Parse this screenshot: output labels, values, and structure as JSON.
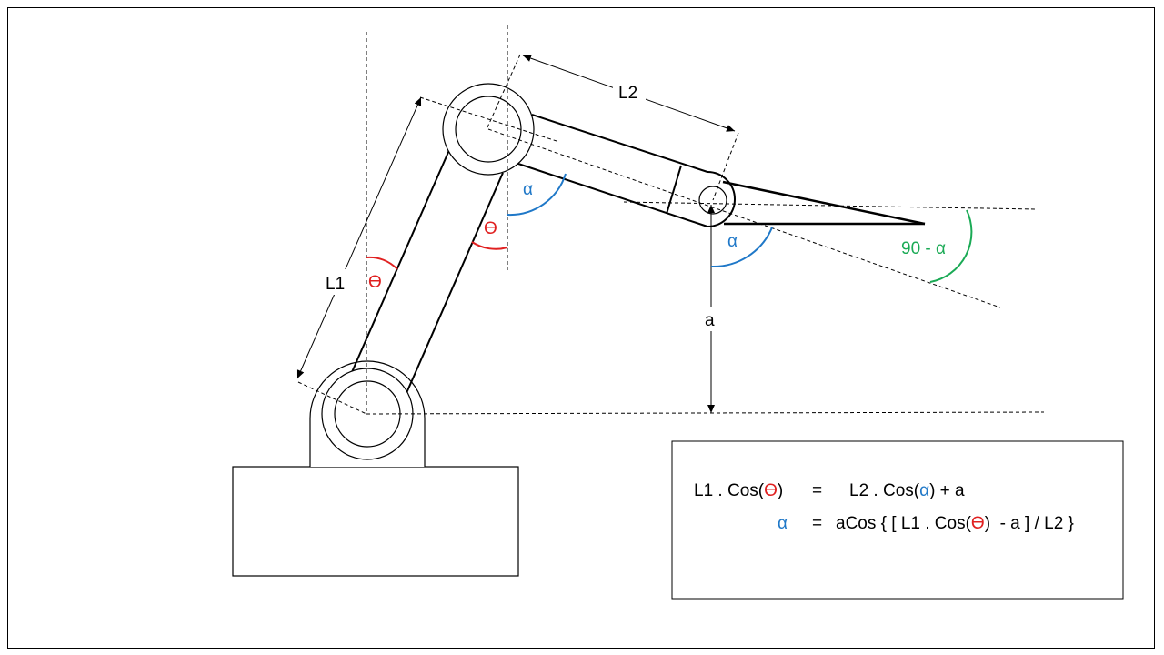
{
  "labels": {
    "l1": "L1",
    "l2": "L2",
    "a": "a",
    "theta_link1": "ϴ",
    "theta_link2": "ϴ",
    "alpha_elbow": "α",
    "alpha_wrist": "α",
    "ninety_minus_alpha": "90 - α"
  },
  "equations": {
    "line1": {
      "left_prefix": "L1 . Cos(",
      "left_theta": "ϴ",
      "left_suffix": ")",
      "equals": "=",
      "right_prefix": "L2 . Cos(",
      "right_alpha": "α",
      "right_suffix": ") + a"
    },
    "line2": {
      "alpha": "α",
      "equals": "=",
      "prefix": "aCos { [ L1 . Cos(",
      "theta": "ϴ",
      "suffix": ")  - a ] / L2 }"
    }
  },
  "colors": {
    "theta": "#e02020",
    "alpha": "#1f78c8",
    "ninety_minus_alpha": "#1aaa55",
    "line": "#000000"
  }
}
